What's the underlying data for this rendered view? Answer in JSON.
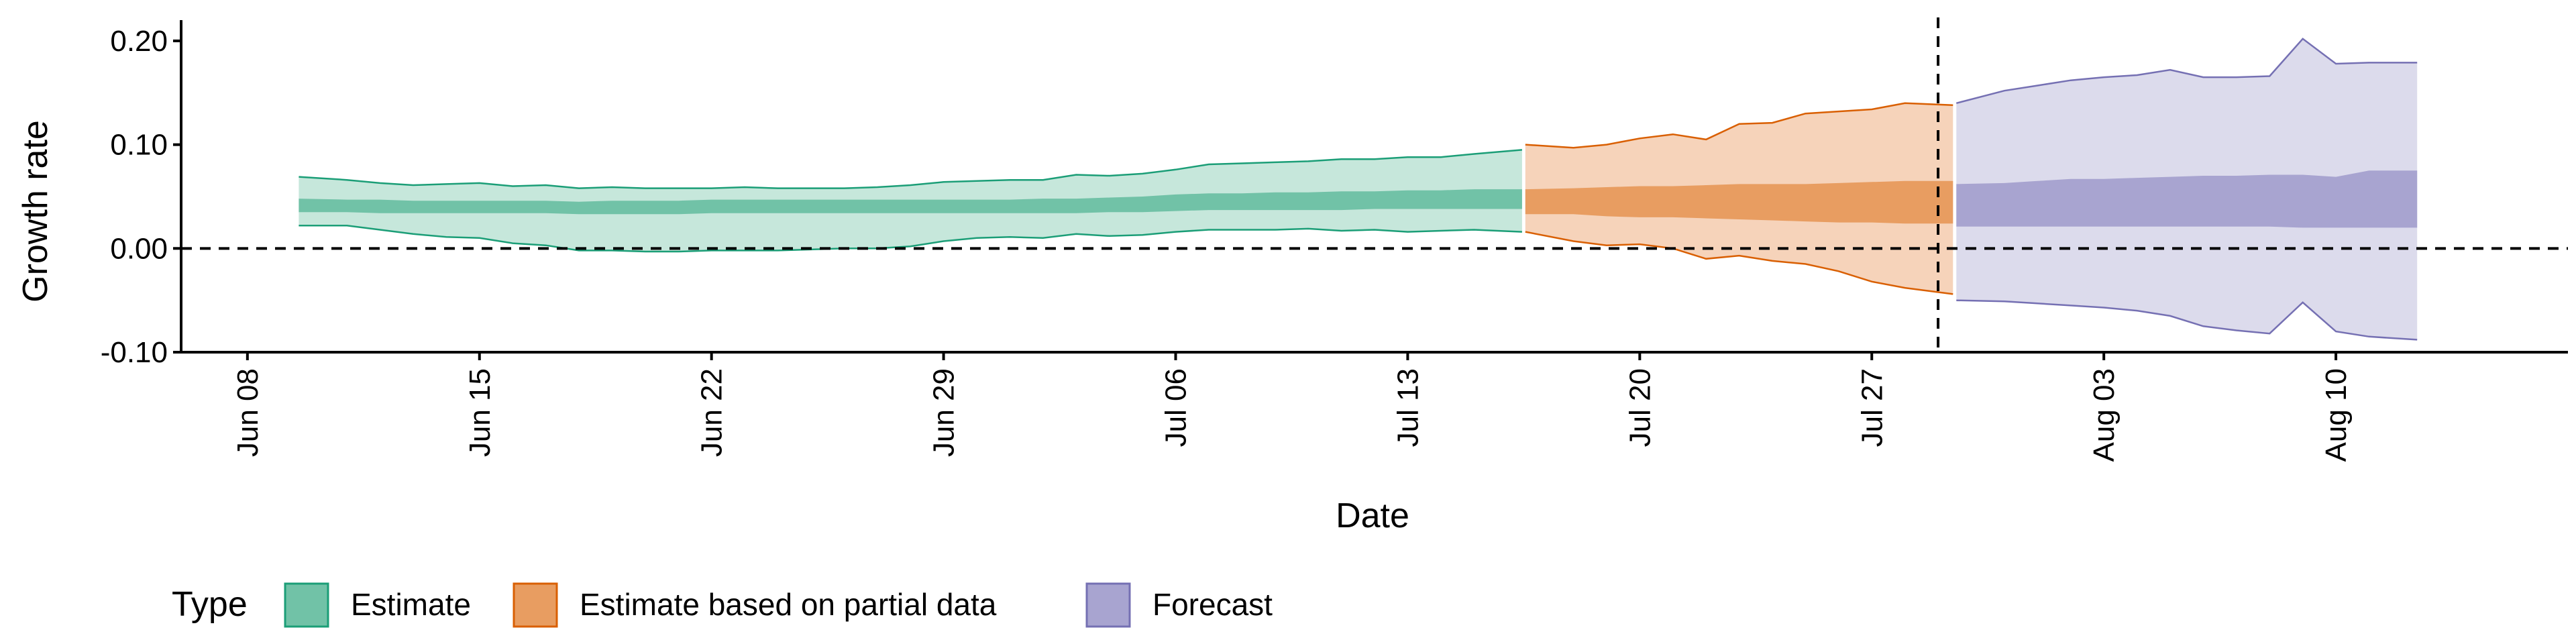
{
  "chart_data": {
    "type": "area",
    "xlabel": "Date",
    "ylabel": "Growth rate",
    "ylim": [
      -0.1,
      0.22
    ],
    "xlim": [
      "2020-06-06",
      "2020-08-17"
    ],
    "y_ticks": [
      -0.1,
      0.0,
      0.1,
      0.2
    ],
    "y_tick_labels": [
      "-0.10",
      "0.00",
      "0.10",
      "0.20"
    ],
    "x_ticks": [
      "2020-06-08",
      "2020-06-15",
      "2020-06-22",
      "2020-06-29",
      "2020-07-06",
      "2020-07-13",
      "2020-07-20",
      "2020-07-27",
      "2020-08-03",
      "2020-08-10"
    ],
    "x_tick_labels": [
      "Jun 08",
      "Jun 15",
      "Jun 22",
      "Jun 29",
      "Jul 06",
      "Jul 13",
      "Jul 20",
      "Jul 27",
      "Aug 03",
      "Aug 10"
    ],
    "reference_lines": [
      {
        "axis": "y",
        "value": 0.0,
        "style": "dashed"
      },
      {
        "axis": "x",
        "value": "2020-07-29",
        "style": "dashed"
      }
    ],
    "grid": false,
    "legend": {
      "title": "Type",
      "position": "bottom-left",
      "items": [
        {
          "label": "Estimate",
          "color": "#71C2A7"
        },
        {
          "label": "Estimate based on partial data",
          "color": "#E89D61"
        },
        {
          "label": "Forecast",
          "color": "#A8A4D0"
        }
      ]
    },
    "series": [
      {
        "name": "Estimate",
        "fill_outer": "#C6E7DB",
        "fill_inner": "#71C2A7",
        "stroke": "#1B9E77",
        "x": [
          "2020-06-10",
          "2020-06-11",
          "2020-06-12",
          "2020-06-13",
          "2020-06-14",
          "2020-06-15",
          "2020-06-16",
          "2020-06-17",
          "2020-06-18",
          "2020-06-19",
          "2020-06-20",
          "2020-06-21",
          "2020-06-22",
          "2020-06-23",
          "2020-06-24",
          "2020-06-25",
          "2020-06-26",
          "2020-06-27",
          "2020-06-28",
          "2020-06-29",
          "2020-06-30",
          "2020-07-01",
          "2020-07-02",
          "2020-07-03",
          "2020-07-04",
          "2020-07-05",
          "2020-07-06",
          "2020-07-07",
          "2020-07-08",
          "2020-07-09",
          "2020-07-10",
          "2020-07-11",
          "2020-07-12",
          "2020-07-13",
          "2020-07-14",
          "2020-07-15",
          "2020-07-16"
        ],
        "upper90": [
          0.069,
          0.066,
          0.063,
          0.061,
          0.062,
          0.063,
          0.06,
          0.061,
          0.058,
          0.059,
          0.058,
          0.058,
          0.058,
          0.059,
          0.058,
          0.058,
          0.058,
          0.059,
          0.061,
          0.064,
          0.065,
          0.066,
          0.066,
          0.071,
          0.07,
          0.072,
          0.076,
          0.081,
          0.082,
          0.083,
          0.084,
          0.086,
          0.086,
          0.088,
          0.088,
          0.091,
          0.095
        ],
        "upper50": [
          0.048,
          0.047,
          0.047,
          0.046,
          0.046,
          0.046,
          0.046,
          0.046,
          0.045,
          0.046,
          0.046,
          0.046,
          0.047,
          0.047,
          0.047,
          0.047,
          0.047,
          0.047,
          0.047,
          0.047,
          0.047,
          0.047,
          0.048,
          0.048,
          0.049,
          0.05,
          0.052,
          0.053,
          0.053,
          0.054,
          0.054,
          0.055,
          0.055,
          0.056,
          0.056,
          0.057,
          0.057
        ],
        "lower50": [
          0.035,
          0.035,
          0.034,
          0.034,
          0.034,
          0.034,
          0.034,
          0.034,
          0.033,
          0.033,
          0.033,
          0.033,
          0.034,
          0.034,
          0.034,
          0.034,
          0.034,
          0.034,
          0.034,
          0.034,
          0.034,
          0.034,
          0.034,
          0.034,
          0.035,
          0.035,
          0.036,
          0.037,
          0.037,
          0.037,
          0.037,
          0.037,
          0.038,
          0.038,
          0.038,
          0.038,
          0.038
        ],
        "lower90": [
          0.022,
          0.022,
          0.018,
          0.014,
          0.011,
          0.01,
          0.005,
          0.003,
          -0.002,
          -0.002,
          -0.003,
          -0.003,
          -0.002,
          -0.002,
          -0.002,
          -0.001,
          0.0,
          0.0,
          0.002,
          0.007,
          0.01,
          0.011,
          0.01,
          0.014,
          0.012,
          0.013,
          0.016,
          0.018,
          0.018,
          0.018,
          0.019,
          0.017,
          0.018,
          0.016,
          0.017,
          0.018,
          0.016
        ]
      },
      {
        "name": "Estimate based on partial data",
        "fill_outer": "#F6D3BA",
        "fill_inner": "#E89D61",
        "stroke": "#D95F02",
        "x": [
          "2020-07-17",
          "2020-07-18",
          "2020-07-19",
          "2020-07-20",
          "2020-07-21",
          "2020-07-22",
          "2020-07-23",
          "2020-07-24",
          "2020-07-25",
          "2020-07-26",
          "2020-07-27",
          "2020-07-28",
          "2020-07-29"
        ],
        "upper90": [
          0.1,
          0.097,
          0.1,
          0.106,
          0.11,
          0.105,
          0.12,
          0.121,
          0.13,
          0.132,
          0.134,
          0.14,
          0.138
        ],
        "upper50": [
          0.057,
          0.058,
          0.059,
          0.06,
          0.06,
          0.061,
          0.062,
          0.062,
          0.062,
          0.063,
          0.064,
          0.065,
          0.065
        ],
        "lower50": [
          0.033,
          0.033,
          0.031,
          0.03,
          0.03,
          0.029,
          0.028,
          0.027,
          0.026,
          0.025,
          0.025,
          0.024,
          0.024
        ],
        "lower90": [
          0.016,
          0.007,
          0.003,
          0.004,
          0.0,
          -0.01,
          -0.007,
          -0.012,
          -0.015,
          -0.022,
          -0.032,
          -0.038,
          -0.044
        ]
      },
      {
        "name": "Forecast",
        "fill_outer": "#DCDBEC",
        "fill_inner": "#A8A4D0",
        "stroke": "#7570B3",
        "x": [
          "2020-07-30",
          "2020-07-31",
          "2020-08-01",
          "2020-08-02",
          "2020-08-03",
          "2020-08-04",
          "2020-08-05",
          "2020-08-06",
          "2020-08-07",
          "2020-08-08",
          "2020-08-09",
          "2020-08-10",
          "2020-08-11",
          "2020-08-12"
        ],
        "upper90": [
          0.14,
          0.152,
          0.157,
          0.162,
          0.165,
          0.167,
          0.172,
          0.165,
          0.165,
          0.166,
          0.202,
          0.178,
          0.179,
          0.179
        ],
        "upper50": [
          0.062,
          0.063,
          0.065,
          0.067,
          0.067,
          0.068,
          0.069,
          0.07,
          0.07,
          0.071,
          0.071,
          0.069,
          0.075,
          0.075
        ],
        "lower50": [
          0.021,
          0.021,
          0.021,
          0.021,
          0.021,
          0.021,
          0.021,
          0.021,
          0.021,
          0.021,
          0.02,
          0.02,
          0.02,
          0.02
        ],
        "lower90": [
          -0.05,
          -0.051,
          -0.053,
          -0.055,
          -0.057,
          -0.06,
          -0.065,
          -0.075,
          -0.079,
          -0.082,
          -0.052,
          -0.08,
          -0.085,
          -0.088
        ]
      }
    ]
  }
}
